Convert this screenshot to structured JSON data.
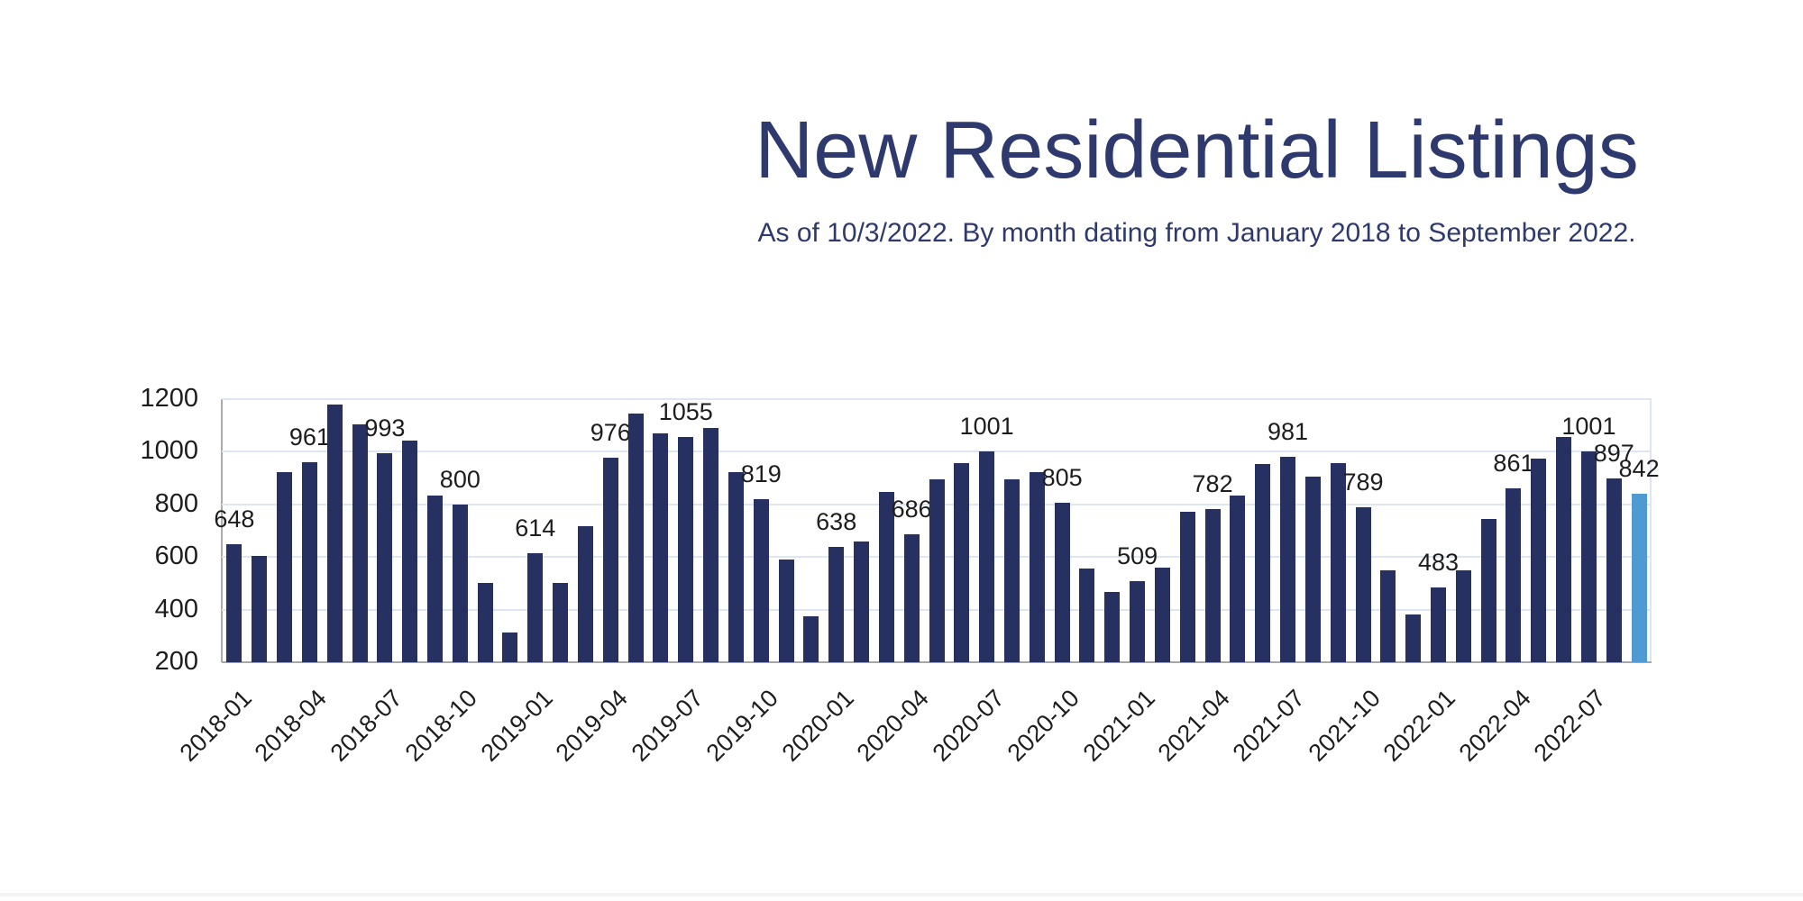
{
  "header": {
    "title": "New Residential Listings",
    "subtitle": "As of 10/3/2022. By month dating from January 2018 to September 2022."
  },
  "colors": {
    "bar": "#273161",
    "bar_highlight": "#4f9ad3",
    "title_text": "#2e3a6d",
    "subtitle_text": "#2e3a6d",
    "grid_line": "#dde6f2",
    "axis_line": "#a6a6a6",
    "tick_text": "#1d1d1d"
  },
  "chart_data": {
    "type": "bar",
    "title": "New Residential Listings",
    "subtitle": "As of 10/3/2022. By month dating from January 2018 to September 2022.",
    "x": [
      "2018-01",
      "2018-02",
      "2018-03",
      "2018-04",
      "2018-05",
      "2018-06",
      "2018-07",
      "2018-08",
      "2018-09",
      "2018-10",
      "2018-11",
      "2018-12",
      "2019-01",
      "2019-02",
      "2019-03",
      "2019-04",
      "2019-05",
      "2019-06",
      "2019-07",
      "2019-08",
      "2019-09",
      "2019-10",
      "2019-11",
      "2019-12",
      "2020-01",
      "2020-02",
      "2020-03",
      "2020-04",
      "2020-05",
      "2020-06",
      "2020-07",
      "2020-08",
      "2020-09",
      "2020-10",
      "2020-11",
      "2020-12",
      "2021-01",
      "2021-02",
      "2021-03",
      "2021-04",
      "2021-05",
      "2021-06",
      "2021-07",
      "2021-08",
      "2021-09",
      "2021-10",
      "2021-11",
      "2021-12",
      "2022-01",
      "2022-02",
      "2022-03",
      "2022-04",
      "2022-05",
      "2022-06",
      "2022-07",
      "2022-08",
      "2022-09"
    ],
    "values": [
      648,
      603,
      924,
      961,
      1180,
      1104,
      993,
      1042,
      833,
      800,
      501,
      312,
      614,
      503,
      718,
      976,
      1146,
      1070,
      1055,
      1091,
      923,
      819,
      589,
      376,
      638,
      660,
      847,
      686,
      895,
      957,
      1001,
      895,
      924,
      805,
      557,
      466,
      509,
      561,
      773,
      782,
      832,
      953,
      981,
      907,
      958,
      789,
      550,
      383,
      483,
      550,
      746,
      861,
      975,
      1057,
      1001,
      897,
      842
    ],
    "value_labels_on": [
      "2018-01",
      "2018-04",
      "2018-07",
      "2018-10",
      "2019-01",
      "2019-04",
      "2019-07",
      "2019-10",
      "2020-01",
      "2020-04",
      "2020-07",
      "2020-10",
      "2021-01",
      "2021-04",
      "2021-07",
      "2021-10",
      "2022-01",
      "2022-04",
      "2022-07",
      "2022-08",
      "2022-09"
    ],
    "x_tick_labels": [
      "2018-01",
      "2018-04",
      "2018-07",
      "2018-10",
      "2019-01",
      "2019-04",
      "2019-07",
      "2019-10",
      "2020-01",
      "2020-04",
      "2020-07",
      "2020-10",
      "2021-01",
      "2021-04",
      "2021-07",
      "2021-10",
      "2022-01",
      "2022-04",
      "2022-07"
    ],
    "y_ticks": [
      200,
      400,
      600,
      800,
      1000,
      1200
    ],
    "ylim": [
      200,
      1200
    ],
    "baseline": 200,
    "highlight_x": "2022-09",
    "grid": true,
    "legend": "none",
    "xlabel": "",
    "ylabel": ""
  }
}
